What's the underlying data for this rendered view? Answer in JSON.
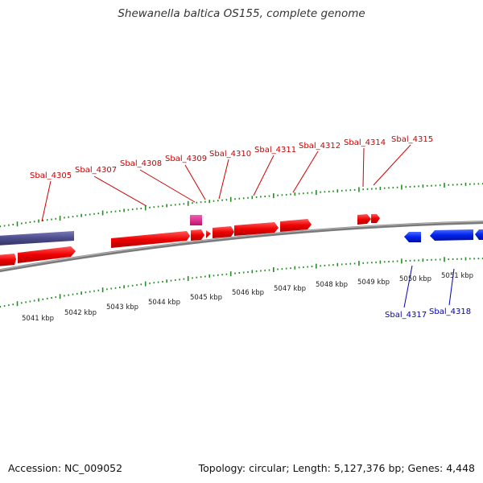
{
  "title": "Shewanella baltica OS155, complete genome",
  "footer": {
    "accession": "Accession: NC_009052",
    "summary": "Topology: circular; Length: 5,127,376 bp; Genes: 4,448"
  },
  "colors": {
    "forward_gene": "#ff0000",
    "reverse_gene": "#0000ff",
    "other_gene": "#4c4c8c",
    "rna_gene": "#e0288c",
    "backbone": "#808080",
    "tick": "#1f8f1f"
  },
  "kbp_labels": [
    "5041 kbp",
    "5042 kbp",
    "5043 kbp",
    "5044 kbp",
    "5045 kbp",
    "5046 kbp",
    "5047 kbp",
    "5048 kbp",
    "5049 kbp",
    "5050 kbp",
    "5051 kbp"
  ],
  "forward_labels": [
    "Sbal_4305",
    "Sbal_4307",
    "Sbal_4308",
    "Sbal_4309",
    "Sbal_4310",
    "Sbal_4311",
    "Sbal_4312",
    "Sbal_4314",
    "Sbal_4315"
  ],
  "reverse_labels": [
    "Sbal_4317",
    "Sbal_4318"
  ]
}
